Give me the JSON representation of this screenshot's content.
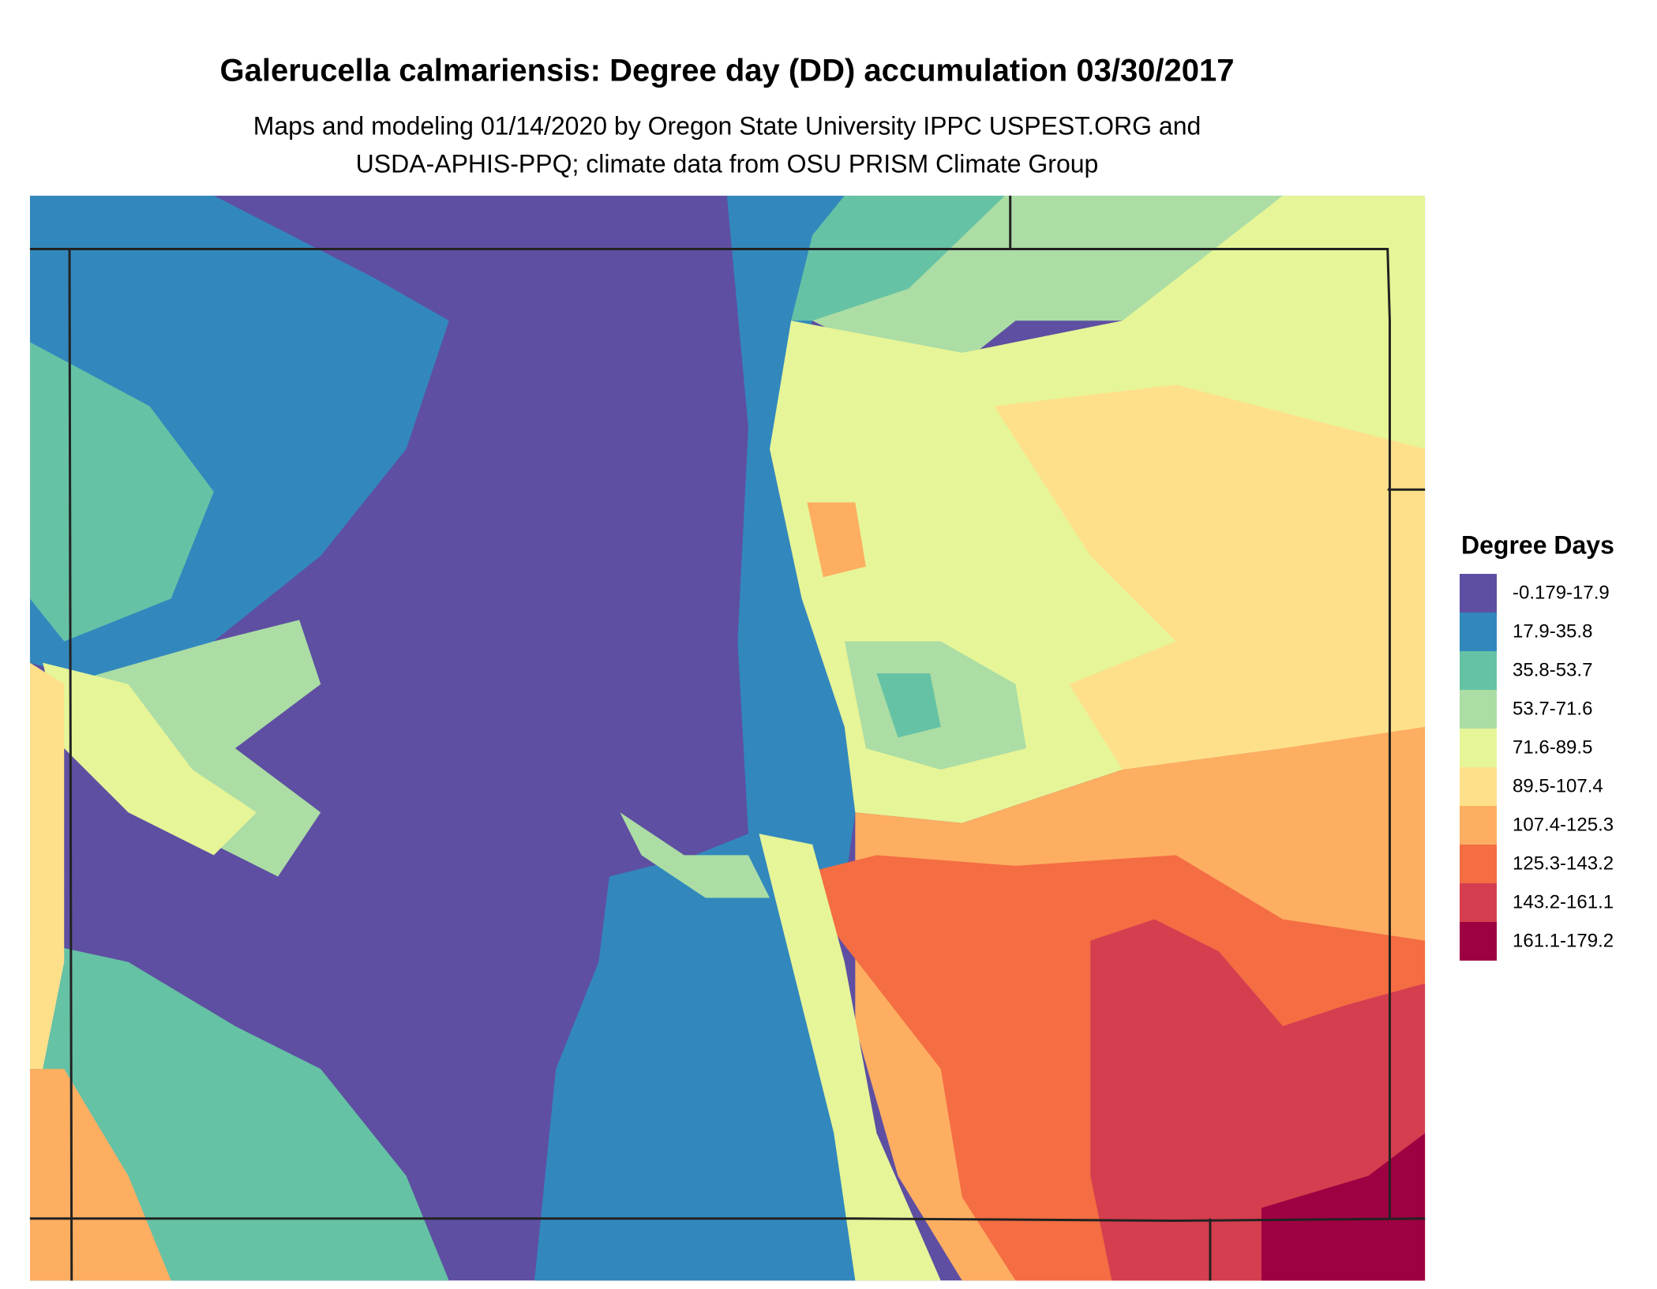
{
  "header": {
    "title": "Galerucella calmariensis: Degree day (DD) accumulation 03/30/2017",
    "subtitle": [
      "Maps and modeling 01/14/2020 by Oregon State University IPPC USPEST.ORG and",
      "USDA-APHIS-PPQ; climate data from OSU PRISM Climate Group"
    ]
  },
  "legend": {
    "title": "Degree Days",
    "items": [
      {
        "label": "-0.179-17.9",
        "color": "#5e4fa2"
      },
      {
        "label": "17.9-35.8",
        "color": "#3288bd"
      },
      {
        "label": "35.8-53.7",
        "color": "#66c2a5"
      },
      {
        "label": "53.7-71.6",
        "color": "#abdda4"
      },
      {
        "label": "71.6-89.5",
        "color": "#e6f598"
      },
      {
        "label": "89.5-107.4",
        "color": "#fee08b"
      },
      {
        "label": "107.4-125.3",
        "color": "#fdae61"
      },
      {
        "label": "125.3-143.2",
        "color": "#f46d43"
      },
      {
        "label": "143.2-161.1",
        "color": "#d53e4f"
      },
      {
        "label": "161.1-179.2",
        "color": "#9e0142"
      }
    ]
  }
}
